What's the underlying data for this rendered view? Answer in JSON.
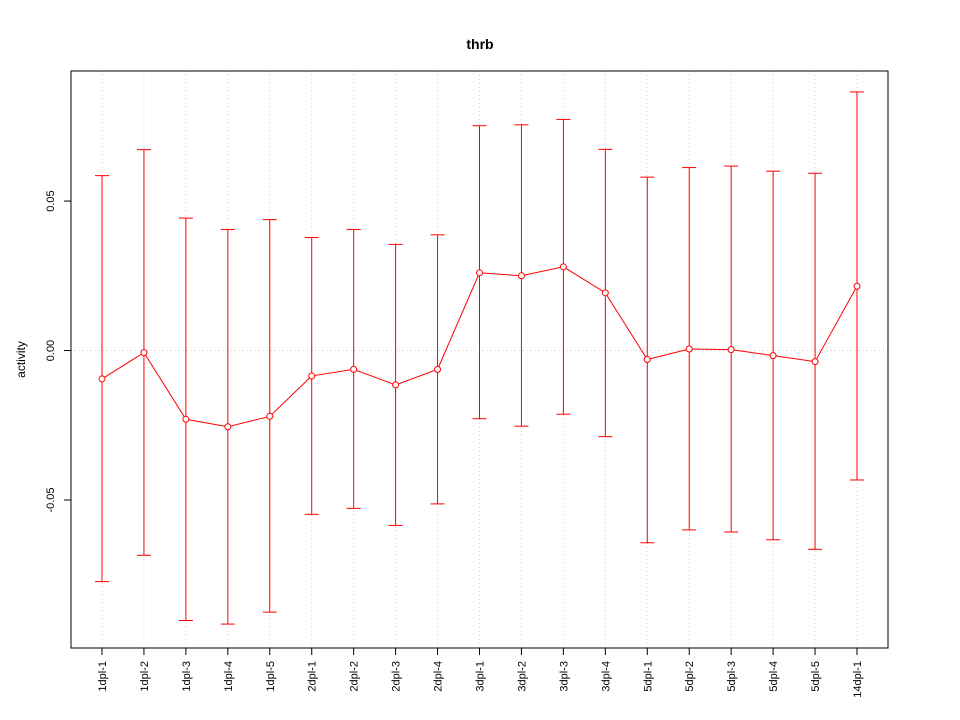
{
  "chart_data": {
    "type": "line",
    "title": "thrb",
    "xlabel": "",
    "ylabel": "activity",
    "categories": [
      "1dpl-1",
      "1dpl-2",
      "1dpl-3",
      "1dpl-4",
      "1dpl-5",
      "2dpl-1",
      "2dpl-2",
      "2dpl-3",
      "2dpl-4",
      "3dpl-1",
      "3dpl-2",
      "3dpl-3",
      "3dpl-4",
      "5dpl-1",
      "5dpl-2",
      "5dpl-3",
      "5dpl-4",
      "5dpl-5",
      "14dpl-1"
    ],
    "series": [
      {
        "values": [
          -0.0095,
          -0.0007,
          -0.023,
          -0.0255,
          -0.022,
          -0.0085,
          -0.0063,
          -0.0115,
          -0.0063,
          0.026,
          0.025,
          0.028,
          0.0193,
          -0.003,
          0.0005,
          0.0003,
          -0.0017,
          -0.0037,
          0.0215
        ],
        "upper": [
          0.0585,
          0.0672,
          0.0443,
          0.0405,
          0.0438,
          0.0378,
          0.0405,
          0.0355,
          0.0387,
          0.0752,
          0.0755,
          0.0773,
          0.0673,
          0.058,
          0.0612,
          0.0617,
          0.06,
          0.0593,
          0.0865
        ],
        "lower": [
          -0.0773,
          -0.0685,
          -0.0903,
          -0.0915,
          -0.0875,
          -0.0548,
          -0.0528,
          -0.0585,
          -0.0513,
          -0.0228,
          -0.0253,
          -0.0213,
          -0.0288,
          -0.0643,
          -0.06,
          -0.0607,
          -0.0633,
          -0.0665,
          -0.0433
        ]
      }
    ],
    "ylim": [
      -0.0995,
      0.0935
    ],
    "yticks": [
      -0.05,
      0.0,
      0.05
    ],
    "ytick_labels": [
      "-0.05",
      "0.00",
      "0.05"
    ],
    "grid": true,
    "colors": {
      "series": "#ff0000",
      "grid": "#d3d3d3",
      "axis": "#000000"
    }
  }
}
